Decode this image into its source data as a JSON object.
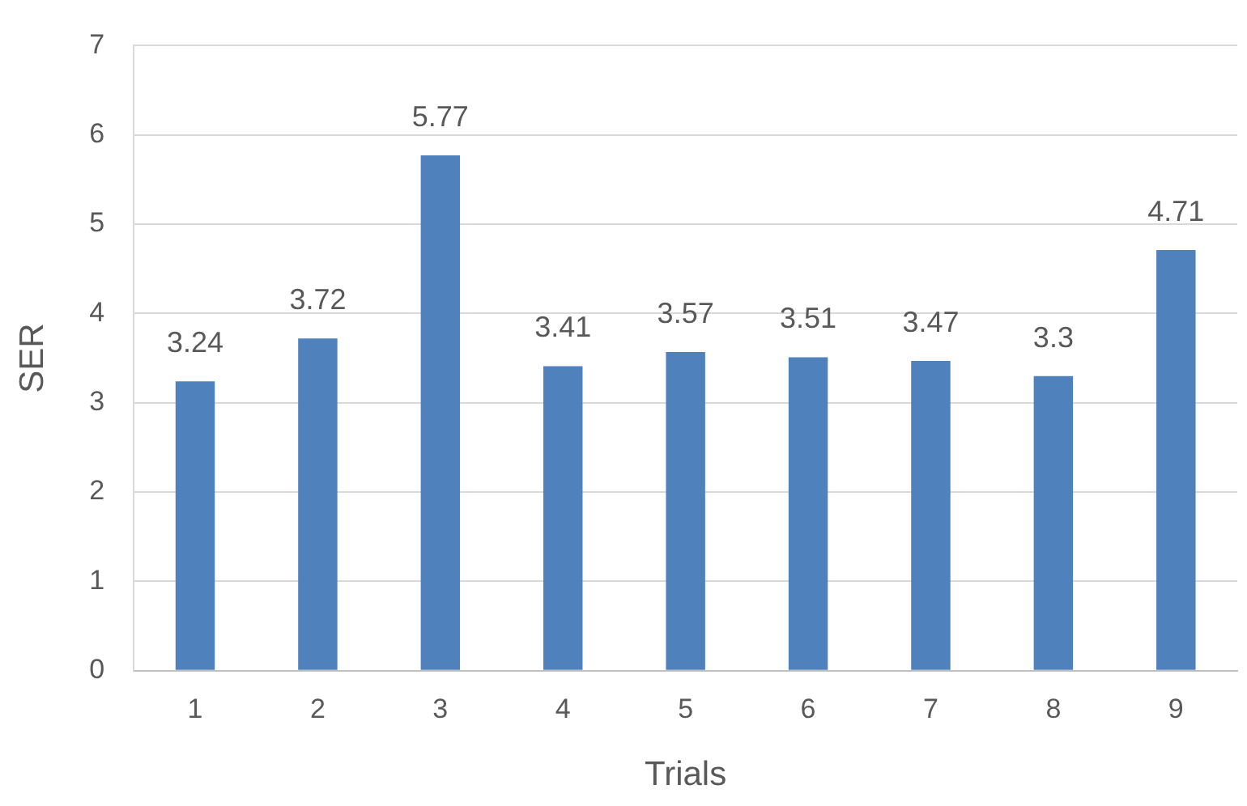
{
  "chart_data": {
    "type": "bar",
    "xlabel": "Trials",
    "ylabel": "SER",
    "categories": [
      "1",
      "2",
      "3",
      "4",
      "5",
      "6",
      "7",
      "8",
      "9"
    ],
    "values": [
      3.24,
      3.72,
      5.77,
      3.41,
      3.57,
      3.51,
      3.47,
      3.3,
      4.71
    ],
    "color": "#4f81bd",
    "ylim": [
      0,
      7
    ],
    "yticks": [
      0,
      1,
      2,
      3,
      4,
      5,
      6,
      7
    ],
    "grid": "y",
    "data_labels": true
  }
}
